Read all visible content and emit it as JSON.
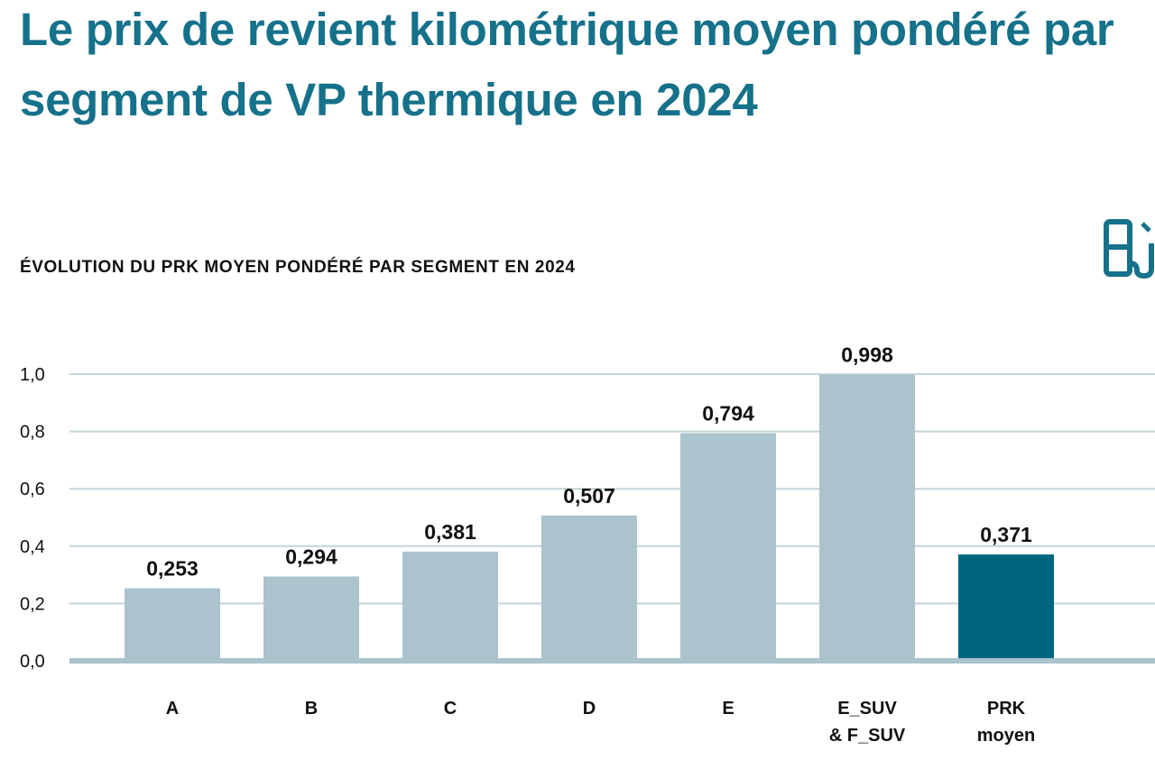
{
  "page": {
    "title": "Le prix de revient kilométrique moyen pondéré par segment de VP thermique en 2024",
    "icon": "fuel-pump-icon"
  },
  "chart_data": {
    "type": "bar",
    "title": "ÉVOLUTION DU PRK MOYEN PONDÉRÉ PAR SEGMENT EN 2024",
    "categories": [
      [
        "A"
      ],
      [
        "B"
      ],
      [
        "C"
      ],
      [
        "D"
      ],
      [
        "E"
      ],
      [
        "E_SUV",
        "& F_SUV"
      ],
      [
        "PRK",
        "moyen"
      ]
    ],
    "values": [
      0.253,
      0.294,
      0.381,
      0.507,
      0.794,
      0.998,
      0.371
    ],
    "value_labels": [
      "0,253",
      "0,294",
      "0,381",
      "0,507",
      "0,794",
      "0,998",
      "0,371"
    ],
    "highlight_index": 6,
    "yticks": [
      0,
      0.2,
      0.4,
      0.6,
      0.8,
      1.0
    ],
    "ytick_labels": [
      "0,0",
      "0,2",
      "0,4",
      "0,6",
      "0,8",
      "1,0"
    ],
    "ylim": [
      0,
      1.0
    ],
    "grid": true,
    "xlabel": "",
    "ylabel": "",
    "colors": {
      "bar": "#aac3cc",
      "highlight": "#00667f",
      "grid": "#c5d3d9",
      "axis": "#aac3cc"
    }
  }
}
